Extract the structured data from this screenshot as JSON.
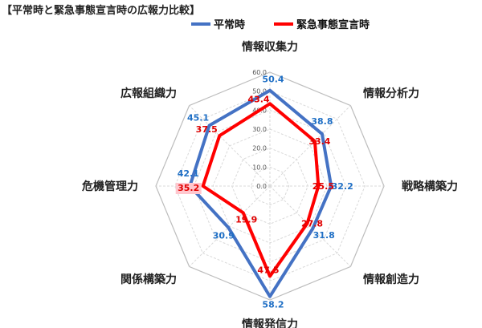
{
  "chart_data": {
    "type": "radar",
    "title": "【平常時と緊急事態宣言時の広報力比較】",
    "axes": [
      "情報収集力",
      "情報分析力",
      "戦略構築力",
      "情報創造力",
      "情報発信力",
      "関係構築力",
      "危機管理力",
      "広報組織力"
    ],
    "ticks": [
      "0.0",
      "10.0",
      "20.0",
      "30.0",
      "40.0",
      "50.0",
      "60.0"
    ],
    "range": [
      0,
      60
    ],
    "grid": true,
    "legend_position": "top",
    "series": [
      {
        "name": "平常時",
        "color": "#4472C4",
        "label_color": "#1F6FC5",
        "values": [
          50.4,
          38.8,
          32.2,
          31.8,
          58.2,
          30.9,
          42.1,
          45.1
        ],
        "labels": [
          "50.4",
          "38.8",
          "32.2",
          "31.8",
          "58.2",
          "30.9",
          "42.1",
          "45.1"
        ]
      },
      {
        "name": "緊急事態宣言時",
        "color": "#FF0000",
        "label_color": "#E00000",
        "values": [
          43.4,
          33.4,
          25.5,
          27.8,
          47.5,
          19.9,
          35.2,
          37.5
        ],
        "labels": [
          "43.4",
          "33.4",
          "25.5",
          "27.8",
          "47.5",
          "19.9",
          "35.2",
          "37.5"
        ]
      }
    ]
  }
}
